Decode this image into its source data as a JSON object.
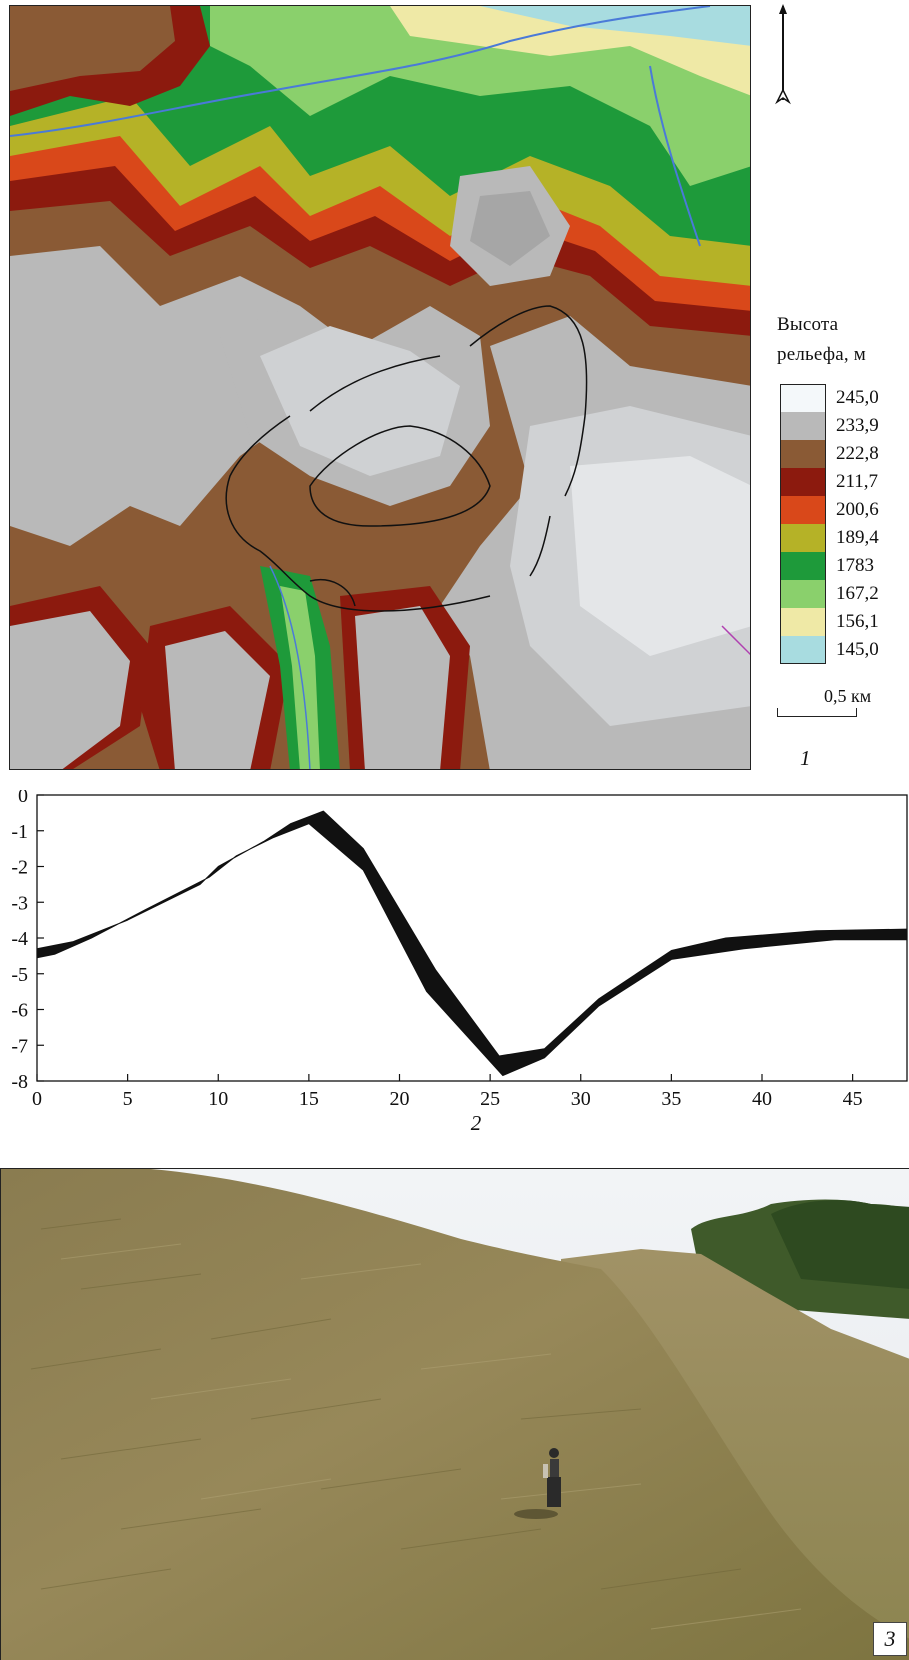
{
  "map": {
    "legend_title_line1": "Высота",
    "legend_title_line2": "рельефа, м",
    "legend": [
      {
        "label": "245,0",
        "color": "#f4f8fa"
      },
      {
        "label": "233,9",
        "color": "#b9b9b9"
      },
      {
        "label": "222,8",
        "color": "#8a5a35"
      },
      {
        "label": "211,7",
        "color": "#8c1a0e"
      },
      {
        "label": "200,6",
        "color": "#d9481a"
      },
      {
        "label": "189,4",
        "color": "#b5b227"
      },
      {
        "label": "1783",
        "color": "#1e9a3a"
      },
      {
        "label": "167,2",
        "color": "#8ad06c"
      },
      {
        "label": "156,1",
        "color": "#efe9a6"
      },
      {
        "label": "145,0",
        "color": "#a8dce0"
      }
    ],
    "scale_label": "0,5 км",
    "panel_label": "1"
  },
  "chart_data": {
    "type": "area",
    "panel_label": "2",
    "xlim": [
      0,
      48
    ],
    "ylim": [
      -8,
      0
    ],
    "x_ticks": [
      0,
      5,
      10,
      15,
      20,
      25,
      30,
      35,
      40,
      45
    ],
    "y_ticks": [
      0,
      -1,
      -2,
      -3,
      -4,
      -5,
      -6,
      -7,
      -8
    ],
    "x_tick_labels": [
      "0",
      "5",
      "10",
      "15",
      "20",
      "25",
      "30",
      "35",
      "40",
      "45"
    ],
    "y_tick_labels": [
      "0",
      "-1",
      "-2",
      "-3",
      "-4",
      "-5",
      "-6",
      "-7",
      "-8"
    ],
    "band_upper": {
      "x": [
        0,
        2,
        5,
        9,
        10,
        12.5,
        14,
        15.8,
        18,
        22,
        25.5,
        28,
        31,
        35,
        38,
        43,
        48
      ],
      "y": [
        -4.3,
        -4.1,
        -3.5,
        -2.5,
        -2.0,
        -1.3,
        -0.8,
        -0.45,
        -1.5,
        -4.9,
        -7.3,
        -7.1,
        -5.7,
        -4.35,
        -4.0,
        -3.8,
        -3.75
      ]
    },
    "band_lower": {
      "x": [
        0,
        1,
        3,
        6,
        9.5,
        11,
        13,
        15,
        18,
        21.5,
        25.7,
        28,
        31,
        35,
        39,
        44,
        48
      ],
      "y": [
        -4.55,
        -4.45,
        -4.0,
        -3.2,
        -2.3,
        -1.7,
        -1.2,
        -0.8,
        -2.1,
        -5.5,
        -7.85,
        -7.35,
        -5.9,
        -4.6,
        -4.3,
        -4.05,
        -4.05
      ]
    }
  },
  "photo": {
    "panel_label": "3"
  }
}
